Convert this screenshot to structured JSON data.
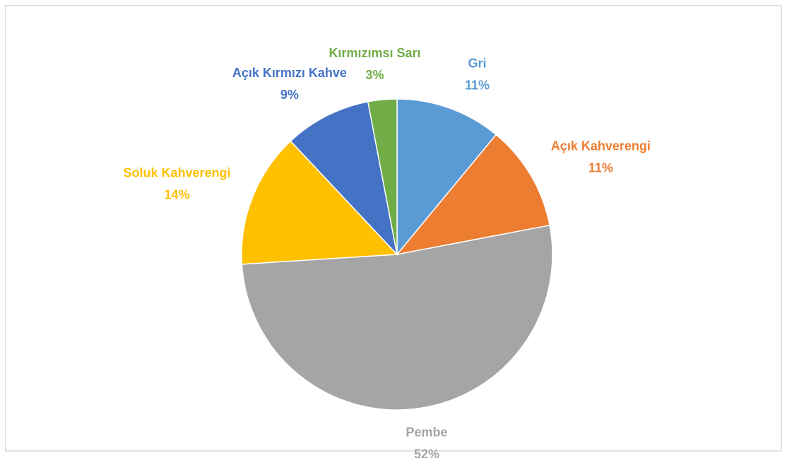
{
  "chart_data": {
    "type": "pie",
    "categories": [
      "Gri",
      "Açık Kahverengi",
      "Pembe",
      "Soluk Kahverengi",
      "Açık Kırmızı Kahve",
      "Kırmızımsı Sarı"
    ],
    "values": [
      11,
      11,
      52,
      14,
      9,
      3
    ],
    "value_labels": [
      "11%",
      "11%",
      "52%",
      "14%",
      "9%",
      "3%"
    ],
    "colors": [
      "#5b9bd5",
      "#ed7d31",
      "#a5a5a5",
      "#ffc000",
      "#4472c4",
      "#70ad47"
    ]
  }
}
